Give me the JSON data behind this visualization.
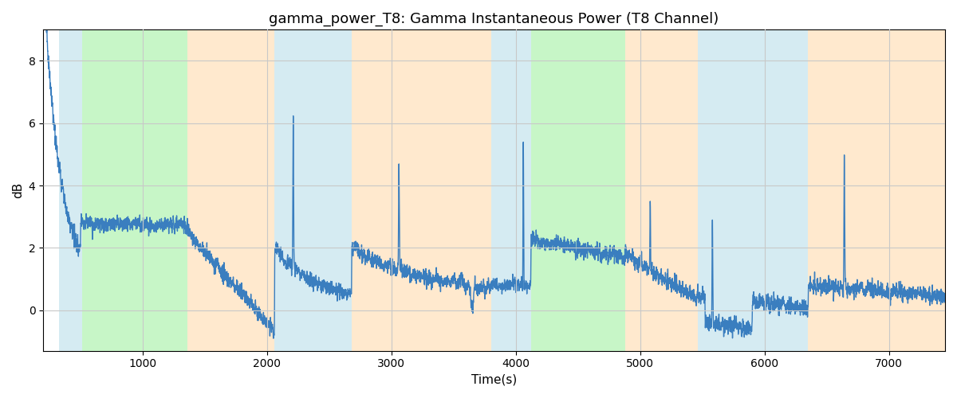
{
  "title": "gamma_power_T8: Gamma Instantaneous Power (T8 Channel)",
  "xlabel": "Time(s)",
  "ylabel": "dB",
  "xlim": [
    200,
    7450
  ],
  "ylim": [
    -1.3,
    9.0
  ],
  "line_color": "#3a7ebf",
  "line_width": 1.0,
  "grid_color": "#c8c8c8",
  "background_color": "#ffffff",
  "bands": [
    {
      "xmin": 330,
      "xmax": 510,
      "color": "#add8e6",
      "alpha": 0.5
    },
    {
      "xmin": 510,
      "xmax": 1360,
      "color": "#90ee90",
      "alpha": 0.5
    },
    {
      "xmin": 1360,
      "xmax": 2060,
      "color": "#ffd59e",
      "alpha": 0.5
    },
    {
      "xmin": 2060,
      "xmax": 2680,
      "color": "#add8e6",
      "alpha": 0.5
    },
    {
      "xmin": 2680,
      "xmax": 3800,
      "color": "#ffd59e",
      "alpha": 0.5
    },
    {
      "xmin": 3800,
      "xmax": 4120,
      "color": "#add8e6",
      "alpha": 0.5
    },
    {
      "xmin": 4120,
      "xmax": 4880,
      "color": "#90ee90",
      "alpha": 0.5
    },
    {
      "xmin": 4880,
      "xmax": 5460,
      "color": "#ffd59e",
      "alpha": 0.5
    },
    {
      "xmin": 5460,
      "xmax": 6350,
      "color": "#add8e6",
      "alpha": 0.5
    },
    {
      "xmin": 6350,
      "xmax": 7450,
      "color": "#ffd59e",
      "alpha": 0.5
    }
  ],
  "xticks": [
    1000,
    2000,
    3000,
    4000,
    5000,
    6000,
    7000
  ],
  "yticks": [
    0,
    2,
    4,
    6,
    8
  ]
}
